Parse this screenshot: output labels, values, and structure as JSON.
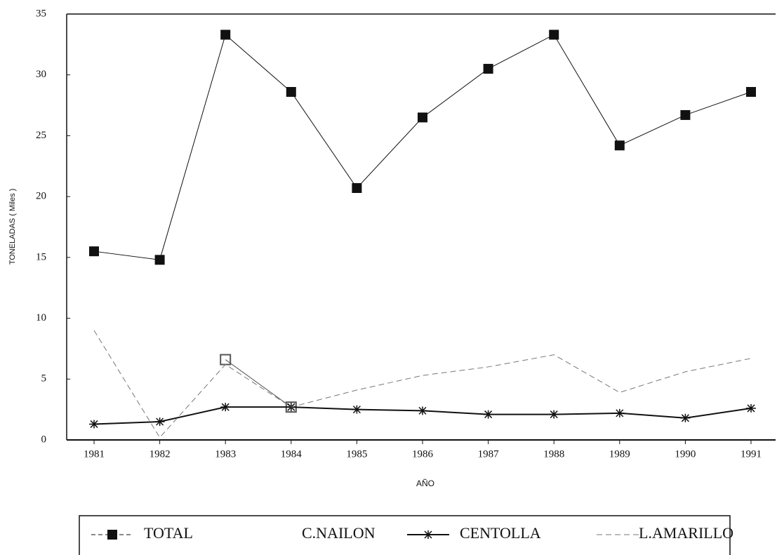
{
  "chart_data": {
    "type": "line",
    "x_label": "AÑO",
    "y_label": "TONELADAS ( Miles )",
    "categories": [
      "1981",
      "1982",
      "1983",
      "1984",
      "1985",
      "1986",
      "1987",
      "1988",
      "1989",
      "1990",
      "1991"
    ],
    "ylim": [
      0,
      35
    ],
    "yticks": [
      0,
      5,
      10,
      15,
      20,
      25,
      30,
      35
    ],
    "series": [
      {
        "name": "TOTAL",
        "color": "#111111",
        "marker": "square",
        "dash": "none",
        "width": 1,
        "values": [
          15.5,
          14.8,
          33.3,
          28.6,
          20.7,
          26.5,
          30.5,
          33.3,
          24.2,
          26.7,
          28.6
        ]
      },
      {
        "name": "C.NAILON",
        "color": "#555555",
        "marker": "hollow-square",
        "dash": "none",
        "width": 1,
        "values": [
          null,
          null,
          6.6,
          2.7,
          null,
          null,
          null,
          null,
          null,
          null,
          null
        ]
      },
      {
        "name": "CENTOLLA",
        "color": "#111111",
        "marker": "star",
        "dash": "none",
        "width": 2,
        "values": [
          1.3,
          1.5,
          2.7,
          2.7,
          2.5,
          2.4,
          2.1,
          2.1,
          2.2,
          1.8,
          2.6
        ]
      },
      {
        "name": "L.AMARILLO",
        "color": "#777777",
        "marker": "none",
        "dash": "8 5",
        "width": 1,
        "values": [
          9.0,
          0.2,
          6.2,
          2.7,
          4.1,
          5.3,
          6.0,
          7.0,
          3.9,
          5.6,
          6.7
        ]
      }
    ]
  }
}
